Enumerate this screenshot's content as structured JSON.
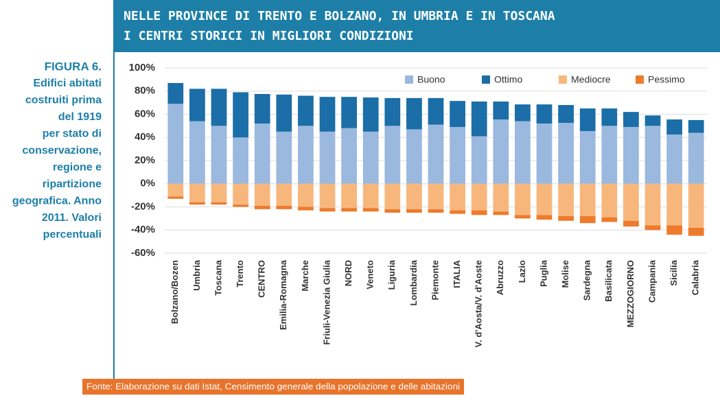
{
  "chart_data": {
    "type": "stacked_bar",
    "title": [
      "NELLE PROVINCE DI TRENTO E BOLZANO, IN UMBRIA E IN TOSCANA",
      "I CENTRI STORICI IN MIGLIORI CONDIZIONI"
    ],
    "figure_label": "FIGURA 6.",
    "caption": [
      "Edifici abitati",
      "costruiti prima",
      "del 1919",
      "per stato di",
      "conservazione,",
      "regione e",
      "ripartizione",
      "geografica. Anno",
      "2011. Valori",
      "percentuali"
    ],
    "source": "Fonte: Elaborazione su dati Istat, Censimento generale della popolazione e delle abitazioni",
    "categories": [
      "Bolzano/Bozen",
      "Umbria",
      "Toscana",
      "Trento",
      "CENTRO",
      "Emilia-Romagna",
      "Marche",
      "Friuli-Venezia Giulia",
      "NORD",
      "Veneto",
      "Liguria",
      "Lombardia",
      "Piemonte",
      "ITALIA",
      "V. d'Aosta/V. d'Aoste",
      "Abruzzo",
      "Lazio",
      "Puglia",
      "Molise",
      "Sardegna",
      "Basilicata",
      "MEZZOGIORNO",
      "Campania",
      "Sicilia",
      "Calabria"
    ],
    "series": [
      {
        "name": "Buono",
        "color": "#9bb8de",
        "values": [
          69,
          54,
          50,
          40,
          52,
          45,
          50,
          45,
          48,
          45,
          50,
          47,
          51,
          49,
          41,
          55.5,
          54,
          52,
          52.5,
          45.5,
          50,
          49,
          50,
          42.5,
          44
        ]
      },
      {
        "name": "Ottimo",
        "color": "#1b6ea7",
        "values": [
          18,
          28,
          32,
          39,
          25.5,
          32,
          26,
          30,
          27,
          29.5,
          24,
          27,
          23,
          22.5,
          30,
          15.5,
          14.5,
          16.5,
          15.5,
          19.5,
          15,
          13,
          9,
          13,
          11
        ]
      },
      {
        "name": "Mediocre",
        "color": "#f7b77c",
        "values": [
          -11,
          -16,
          -16,
          -18,
          -19,
          -19,
          -20,
          -21,
          -21,
          -21,
          -22,
          -22,
          -22,
          -23,
          -23,
          -24,
          -27,
          -27,
          -28,
          -28,
          -29,
          -32,
          -36,
          -36,
          -38
        ]
      },
      {
        "name": "Pessimo",
        "color": "#ee7a2c",
        "values": [
          -2,
          -2,
          -2,
          -2,
          -3,
          -3,
          -3,
          -3,
          -3,
          -3,
          -3,
          -3,
          -3,
          -3,
          -4,
          -3,
          -3,
          -4,
          -4,
          -6,
          -4,
          -5,
          -4,
          -8,
          -7
        ]
      }
    ],
    "ylim": [
      -60,
      100
    ],
    "yticks": [
      {
        "value": 100,
        "label": "100%"
      },
      {
        "value": 80,
        "label": "80%"
      },
      {
        "value": 60,
        "label": "60%"
      },
      {
        "value": 40,
        "label": "40%"
      },
      {
        "value": 20,
        "label": "20%"
      },
      {
        "value": 0,
        "label": "0%"
      },
      {
        "value": -20,
        "label": "-20%"
      },
      {
        "value": -40,
        "label": "-40%"
      },
      {
        "value": -60,
        "label": "-60%"
      }
    ],
    "grid": true,
    "legend": "top"
  }
}
